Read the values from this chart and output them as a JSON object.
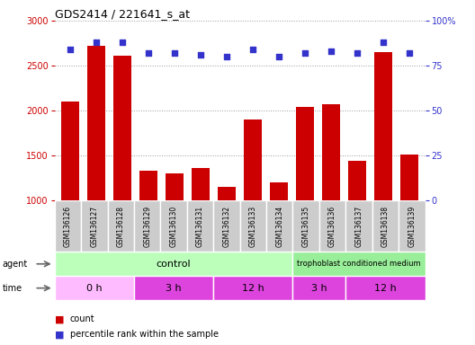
{
  "title": "GDS2414 / 221641_s_at",
  "samples": [
    "GSM136126",
    "GSM136127",
    "GSM136128",
    "GSM136129",
    "GSM136130",
    "GSM136131",
    "GSM136132",
    "GSM136133",
    "GSM136134",
    "GSM136135",
    "GSM136136",
    "GSM136137",
    "GSM136138",
    "GSM136139"
  ],
  "counts": [
    2100,
    2720,
    2610,
    1330,
    1295,
    1355,
    1145,
    1900,
    1200,
    2040,
    2065,
    1435,
    2645,
    1510
  ],
  "percentiles": [
    84,
    88,
    88,
    82,
    82,
    81,
    80,
    84,
    80,
    82,
    83,
    82,
    88,
    82
  ],
  "ylim_left": [
    1000,
    3000
  ],
  "ylim_right": [
    0,
    100
  ],
  "yticks_left": [
    1000,
    1500,
    2000,
    2500,
    3000
  ],
  "yticks_right": [
    0,
    25,
    50,
    75,
    100
  ],
  "bar_color": "#cc0000",
  "dot_color": "#3333cc",
  "grid_color": "#999999",
  "control_color": "#bbffbb",
  "tcm_color": "#99ee99",
  "time_light_color": "#ffbbff",
  "time_dark_color": "#dd44dd",
  "sample_bg_color": "#cccccc",
  "agent_label": "agent",
  "time_label": "time",
  "control_label": "control",
  "tcm_label": "trophoblast conditioned medium",
  "legend_count_label": "count",
  "legend_pct_label": "percentile rank within the sample",
  "time_segs": [
    {
      "label": "0 h",
      "n": 3,
      "dark": false
    },
    {
      "label": "3 h",
      "n": 3,
      "dark": true
    },
    {
      "label": "12 h",
      "n": 3,
      "dark": true
    },
    {
      "label": "3 h",
      "n": 2,
      "dark": true
    },
    {
      "label": "12 h",
      "n": 3,
      "dark": true
    }
  ],
  "control_n": 9,
  "tcm_n": 5
}
